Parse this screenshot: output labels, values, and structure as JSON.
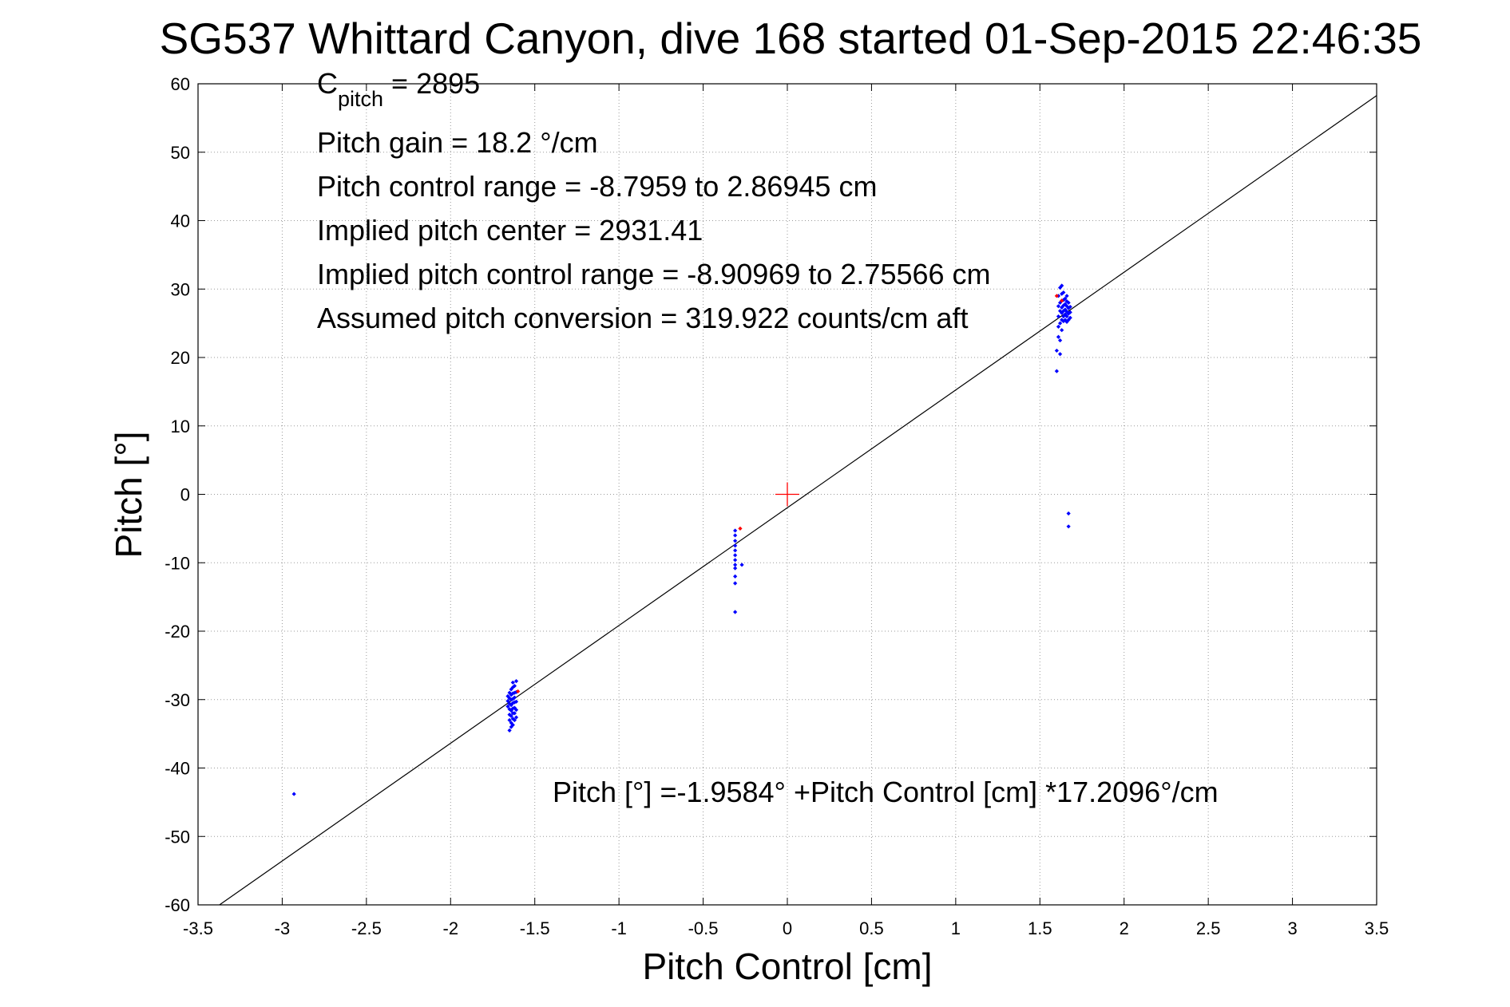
{
  "chart_data": {
    "type": "scatter",
    "title": "SG537 Whittard Canyon, dive 168 started 01-Sep-2015 22:46:35",
    "xlabel": "Pitch Control [cm]",
    "ylabel": "Pitch [°]",
    "xlim": [
      -3.5,
      3.5
    ],
    "ylim": [
      -60,
      60
    ],
    "grid": true,
    "x_ticks": [
      -3.5,
      -3,
      -2.5,
      -2,
      -1.5,
      -1,
      -0.5,
      0,
      0.5,
      1,
      1.5,
      2,
      2.5,
      3,
      3.5
    ],
    "x_tick_labels": [
      "-3.5",
      "-3",
      "-2.5",
      "-2",
      "-1.5",
      "-1",
      "-0.5",
      "0",
      "0.5",
      "1",
      "1.5",
      "2",
      "2.5",
      "3",
      "3.5"
    ],
    "y_ticks": [
      -60,
      -50,
      -40,
      -30,
      -20,
      -10,
      0,
      10,
      20,
      30,
      40,
      50,
      60
    ],
    "y_tick_labels": [
      "-60",
      "-50",
      "-40",
      "-30",
      "-20",
      "-10",
      "0",
      "10",
      "20",
      "30",
      "40",
      "50",
      "60"
    ],
    "annotations": {
      "c_pitch_main": "C",
      "c_pitch_sub": "pitch",
      "c_pitch_value": " = 2895",
      "pitch_gain": "Pitch gain = 18.2 °/cm",
      "pitch_control_range": "Pitch control range = -8.7959 to 2.86945 cm",
      "implied_pitch_center": "Implied pitch center = 2931.41",
      "implied_control_range": "Implied pitch control range = -8.90969 to 2.75566 cm",
      "assumed_conversion": "Assumed pitch conversion = 319.922 counts/cm aft",
      "fit_equation": "Pitch [°] =-1.9584° +Pitch Control [cm] *17.2096°/cm"
    },
    "fit_line": {
      "intercept": -1.9584,
      "slope": 17.2096,
      "color": "#000000"
    },
    "center_marker": {
      "x": 0,
      "y": 0,
      "color": "#ff0000",
      "shape": "plus"
    },
    "series": [
      {
        "color": "#0000ff",
        "points": [
          [
            -2.93,
            -43.8
          ],
          [
            -1.66,
            -29.5
          ],
          [
            -1.66,
            -30.2
          ],
          [
            -1.66,
            -31.0
          ],
          [
            -1.65,
            -29.0
          ],
          [
            -1.65,
            -29.8
          ],
          [
            -1.65,
            -30.6
          ],
          [
            -1.65,
            -31.4
          ],
          [
            -1.65,
            -32.2
          ],
          [
            -1.65,
            -33.0
          ],
          [
            -1.65,
            -34.5
          ],
          [
            -1.64,
            -28.5
          ],
          [
            -1.64,
            -29.3
          ],
          [
            -1.64,
            -30.0
          ],
          [
            -1.64,
            -30.8
          ],
          [
            -1.64,
            -31.6
          ],
          [
            -1.64,
            -32.4
          ],
          [
            -1.64,
            -33.4
          ],
          [
            -1.64,
            -34.0
          ],
          [
            -1.63,
            -27.5
          ],
          [
            -1.63,
            -28.2
          ],
          [
            -1.63,
            -29.1
          ],
          [
            -1.63,
            -29.9
          ],
          [
            -1.63,
            -30.5
          ],
          [
            -1.63,
            -31.3
          ],
          [
            -1.63,
            -32.0
          ],
          [
            -1.63,
            -32.8
          ],
          [
            -1.63,
            -33.7
          ],
          [
            -1.62,
            -28.0
          ],
          [
            -1.62,
            -29.0
          ],
          [
            -1.62,
            -29.7
          ],
          [
            -1.62,
            -30.4
          ],
          [
            -1.62,
            -31.2
          ],
          [
            -1.62,
            -32.0
          ],
          [
            -1.62,
            -33.0
          ],
          [
            -1.61,
            -27.3
          ],
          [
            -1.61,
            -28.9
          ],
          [
            -1.61,
            -30.3
          ],
          [
            -1.61,
            -31.5
          ],
          [
            -1.61,
            -32.6
          ],
          [
            -0.31,
            -5.3
          ],
          [
            -0.31,
            -6.0
          ],
          [
            -0.31,
            -6.8
          ],
          [
            -0.31,
            -7.5
          ],
          [
            -0.31,
            -8.2
          ],
          [
            -0.31,
            -8.9
          ],
          [
            -0.31,
            -9.6
          ],
          [
            -0.31,
            -10.3
          ],
          [
            -0.31,
            -10.8
          ],
          [
            -0.31,
            -12.0
          ],
          [
            -0.31,
            -13.0
          ],
          [
            -0.31,
            -17.2
          ],
          [
            -0.27,
            -10.3
          ],
          [
            1.6,
            18.0
          ],
          [
            1.6,
            21.0
          ],
          [
            1.61,
            23.0
          ],
          [
            1.61,
            24.5
          ],
          [
            1.61,
            26.0
          ],
          [
            1.61,
            27.5
          ],
          [
            1.61,
            29.0
          ],
          [
            1.62,
            20.5
          ],
          [
            1.62,
            22.5
          ],
          [
            1.62,
            25.0
          ],
          [
            1.62,
            26.8
          ],
          [
            1.62,
            28.0
          ],
          [
            1.62,
            30.2
          ],
          [
            1.63,
            24.0
          ],
          [
            1.63,
            25.5
          ],
          [
            1.63,
            26.5
          ],
          [
            1.63,
            27.3
          ],
          [
            1.63,
            28.3
          ],
          [
            1.63,
            29.3
          ],
          [
            1.63,
            30.5
          ],
          [
            1.64,
            25.3
          ],
          [
            1.64,
            26.0
          ],
          [
            1.64,
            26.8
          ],
          [
            1.64,
            27.6
          ],
          [
            1.64,
            28.4
          ],
          [
            1.64,
            29.5
          ],
          [
            1.65,
            25.5
          ],
          [
            1.65,
            26.3
          ],
          [
            1.65,
            27.0
          ],
          [
            1.65,
            27.8
          ],
          [
            1.65,
            28.6
          ],
          [
            1.66,
            25.2
          ],
          [
            1.66,
            26.0
          ],
          [
            1.66,
            26.7
          ],
          [
            1.66,
            27.5
          ],
          [
            1.66,
            28.2
          ],
          [
            1.66,
            29.0
          ],
          [
            1.67,
            25.5
          ],
          [
            1.67,
            26.4
          ],
          [
            1.67,
            27.2
          ],
          [
            1.67,
            28.0
          ],
          [
            1.68,
            25.8
          ],
          [
            1.68,
            26.6
          ],
          [
            1.68,
            27.4
          ],
          [
            1.67,
            -2.8
          ],
          [
            1.67,
            -4.7
          ]
        ]
      },
      {
        "color": "#ff0000",
        "points": [
          [
            -1.6,
            -28.8
          ],
          [
            -0.28,
            -5.0
          ],
          [
            1.6,
            29.0
          ],
          [
            1.63,
            28.3
          ]
        ]
      }
    ]
  }
}
